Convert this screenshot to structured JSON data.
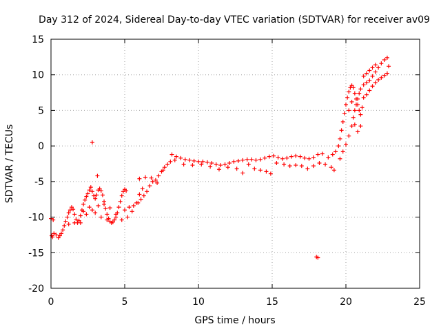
{
  "chart_data": {
    "type": "scatter",
    "title": "Day 312 of 2024, Sidereal Day-to-day VTEC variation (SDTVAR) for receiver av09",
    "xlabel": "GPS time / hours",
    "ylabel": "SDTVAR / TECUs",
    "xlim": [
      0,
      25
    ],
    "ylim": [
      -20,
      15
    ],
    "xticks": [
      0,
      5,
      10,
      15,
      20,
      25
    ],
    "yticks": [
      -20,
      -15,
      -10,
      -5,
      0,
      5,
      10,
      15
    ],
    "xtick_labels": [
      "0",
      "5",
      "10",
      "15",
      "20",
      "25"
    ],
    "ytick_labels": [
      "-20",
      "-15",
      "-10",
      "-5",
      "0",
      "5",
      "10",
      "15"
    ],
    "grid": true,
    "marker": "+",
    "color": "#ff0000",
    "series": [
      {
        "name": "SDTVAR",
        "points": [
          [
            0.0,
            -10.2
          ],
          [
            0.05,
            -12.6
          ],
          [
            0.1,
            -12.8
          ],
          [
            0.15,
            -10.4
          ],
          [
            0.2,
            -12.3
          ],
          [
            0.35,
            -12.5
          ],
          [
            0.5,
            -12.9
          ],
          [
            0.6,
            -12.6
          ],
          [
            0.7,
            -12.3
          ],
          [
            0.8,
            -11.8
          ],
          [
            0.9,
            -11.2
          ],
          [
            1.0,
            -10.6
          ],
          [
            1.1,
            -10.0
          ],
          [
            1.2,
            -9.4
          ],
          [
            1.3,
            -9.0
          ],
          [
            1.4,
            -8.6
          ],
          [
            1.5,
            -8.9
          ],
          [
            1.6,
            -9.6
          ],
          [
            1.7,
            -10.3
          ],
          [
            1.8,
            -10.8
          ],
          [
            1.9,
            -10.5
          ],
          [
            2.0,
            -9.8
          ],
          [
            2.1,
            -9.0
          ],
          [
            2.2,
            -8.2
          ],
          [
            2.3,
            -7.6
          ],
          [
            2.4,
            -7.1
          ],
          [
            2.5,
            -6.7
          ],
          [
            2.6,
            -6.2
          ],
          [
            2.7,
            -5.8
          ],
          [
            2.8,
            -6.4
          ],
          [
            2.9,
            -7.0
          ],
          [
            3.0,
            -7.4
          ],
          [
            3.1,
            -6.9
          ],
          [
            3.15,
            -4.2
          ],
          [
            3.2,
            -6.2
          ],
          [
            3.3,
            -6.0
          ],
          [
            3.4,
            -6.3
          ],
          [
            3.5,
            -6.9
          ],
          [
            3.6,
            -7.8
          ],
          [
            3.7,
            -8.8
          ],
          [
            3.8,
            -9.6
          ],
          [
            3.9,
            -10.2
          ],
          [
            4.0,
            -10.6
          ],
          [
            4.1,
            -10.8
          ],
          [
            4.2,
            -10.7
          ],
          [
            4.3,
            -10.4
          ],
          [
            4.4,
            -10.0
          ],
          [
            4.5,
            -9.4
          ],
          [
            4.6,
            -8.6
          ],
          [
            4.7,
            -7.8
          ],
          [
            4.8,
            -7.0
          ],
          [
            4.9,
            -6.4
          ],
          [
            5.0,
            -6.1
          ],
          [
            5.1,
            -6.3
          ],
          [
            1.2,
            -11.0
          ],
          [
            1.6,
            -10.8
          ],
          [
            2.0,
            -10.8
          ],
          [
            2.4,
            -9.6
          ],
          [
            2.8,
            -9.0
          ],
          [
            3.2,
            -8.4
          ],
          [
            3.6,
            -8.2
          ],
          [
            4.0,
            -8.7
          ],
          [
            4.4,
            -9.6
          ],
          [
            4.8,
            -10.4
          ],
          [
            5.2,
            -10.0
          ],
          [
            5.5,
            -9.2
          ],
          [
            5.8,
            -8.0
          ],
          [
            6.0,
            -6.8
          ],
          [
            6.2,
            -6.0
          ],
          [
            2.2,
            -9.2
          ],
          [
            2.6,
            -8.6
          ],
          [
            3.0,
            -9.4
          ],
          [
            3.4,
            -10.0
          ],
          [
            3.8,
            -10.4
          ],
          [
            5.0,
            -9.0
          ],
          [
            5.3,
            -8.6
          ],
          [
            5.6,
            -8.4
          ],
          [
            5.9,
            -8.0
          ],
          [
            6.1,
            -7.5
          ],
          [
            6.3,
            -7.0
          ],
          [
            6.5,
            -6.4
          ],
          [
            6.7,
            -5.6
          ],
          [
            6.9,
            -5.0
          ],
          [
            7.1,
            -4.8
          ],
          [
            7.3,
            -4.2
          ],
          [
            7.5,
            -3.6
          ],
          [
            7.7,
            -3.0
          ],
          [
            7.9,
            -2.6
          ],
          [
            8.1,
            -2.2
          ],
          [
            6.0,
            -4.6
          ],
          [
            6.4,
            -4.4
          ],
          [
            6.8,
            -4.5
          ],
          [
            7.2,
            -5.2
          ],
          [
            7.6,
            -3.4
          ],
          [
            8.2,
            -1.2
          ],
          [
            8.5,
            -1.5
          ],
          [
            8.8,
            -1.7
          ],
          [
            9.1,
            -1.9
          ],
          [
            9.4,
            -2.0
          ],
          [
            9.7,
            -2.1
          ],
          [
            10.0,
            -2.2
          ],
          [
            10.3,
            -2.2
          ],
          [
            10.6,
            -2.3
          ],
          [
            10.9,
            -2.4
          ],
          [
            11.2,
            -2.6
          ],
          [
            11.5,
            -2.7
          ],
          [
            11.8,
            -2.6
          ],
          [
            12.1,
            -2.4
          ],
          [
            12.4,
            -2.2
          ],
          [
            12.7,
            -2.1
          ],
          [
            13.0,
            -2.0
          ],
          [
            13.3,
            -1.9
          ],
          [
            13.6,
            -1.9
          ],
          [
            13.9,
            -2.0
          ],
          [
            14.2,
            -1.9
          ],
          [
            14.5,
            -1.7
          ],
          [
            14.8,
            -1.5
          ],
          [
            15.1,
            -1.4
          ],
          [
            15.4,
            -1.6
          ],
          [
            15.7,
            -1.8
          ],
          [
            16.0,
            -1.7
          ],
          [
            16.3,
            -1.5
          ],
          [
            16.6,
            -1.4
          ],
          [
            16.9,
            -1.5
          ],
          [
            17.2,
            -1.7
          ],
          [
            17.5,
            -1.8
          ],
          [
            17.8,
            -1.6
          ],
          [
            18.1,
            -1.2
          ],
          [
            18.4,
            -1.1
          ],
          [
            8.4,
            -2.0
          ],
          [
            9.0,
            -2.6
          ],
          [
            9.6,
            -2.7
          ],
          [
            10.2,
            -2.6
          ],
          [
            10.8,
            -2.9
          ],
          [
            11.4,
            -3.3
          ],
          [
            12.0,
            -3.0
          ],
          [
            12.6,
            -3.2
          ],
          [
            13.0,
            -3.8
          ],
          [
            13.4,
            -2.6
          ],
          [
            13.8,
            -3.2
          ],
          [
            14.2,
            -3.4
          ],
          [
            14.6,
            -3.6
          ],
          [
            14.9,
            -3.9
          ],
          [
            15.3,
            -2.4
          ],
          [
            15.8,
            -2.6
          ],
          [
            16.2,
            -2.8
          ],
          [
            16.6,
            -2.7
          ],
          [
            17.0,
            -2.8
          ],
          [
            17.4,
            -3.2
          ],
          [
            17.8,
            -2.8
          ],
          [
            18.2,
            -2.4
          ],
          [
            18.6,
            -2.6
          ],
          [
            19.0,
            -3.0
          ],
          [
            19.2,
            -3.4
          ],
          [
            18.0,
            -15.6
          ],
          [
            18.1,
            -15.7
          ],
          [
            2.8,
            0.5
          ],
          [
            18.8,
            -1.6
          ],
          [
            19.1,
            -1.2
          ],
          [
            19.3,
            -0.8
          ],
          [
            19.5,
            0.0
          ],
          [
            19.6,
            1.0
          ],
          [
            19.7,
            2.2
          ],
          [
            19.8,
            3.4
          ],
          [
            19.9,
            4.6
          ],
          [
            20.0,
            5.8
          ],
          [
            20.1,
            6.8
          ],
          [
            20.2,
            7.6
          ],
          [
            20.3,
            8.2
          ],
          [
            20.4,
            8.5
          ],
          [
            20.5,
            8.2
          ],
          [
            20.6,
            7.4
          ],
          [
            20.7,
            6.6
          ],
          [
            20.8,
            5.8
          ],
          [
            20.9,
            5.0
          ],
          [
            21.0,
            4.4
          ],
          [
            21.1,
            5.4
          ],
          [
            19.6,
            -1.8
          ],
          [
            19.8,
            -0.8
          ],
          [
            20.0,
            0.2
          ],
          [
            20.2,
            1.4
          ],
          [
            20.4,
            2.8
          ],
          [
            20.5,
            4.0
          ],
          [
            20.6,
            5.0
          ],
          [
            20.7,
            5.8
          ],
          [
            20.8,
            6.6
          ],
          [
            20.9,
            7.4
          ],
          [
            21.0,
            8.0
          ],
          [
            21.2,
            8.6
          ],
          [
            21.4,
            8.9
          ],
          [
            21.6,
            9.2
          ],
          [
            21.8,
            9.8
          ],
          [
            22.0,
            10.4
          ],
          [
            22.2,
            11.0
          ],
          [
            22.4,
            11.6
          ],
          [
            22.6,
            12.1
          ],
          [
            22.8,
            12.4
          ],
          [
            21.2,
            6.8
          ],
          [
            21.4,
            7.2
          ],
          [
            21.6,
            7.8
          ],
          [
            21.8,
            8.4
          ],
          [
            22.0,
            8.9
          ],
          [
            22.2,
            9.3
          ],
          [
            22.4,
            9.6
          ],
          [
            22.6,
            9.9
          ],
          [
            22.8,
            10.2
          ],
          [
            22.9,
            11.2
          ],
          [
            20.2,
            5.0
          ],
          [
            20.4,
            6.2
          ],
          [
            20.6,
            3.0
          ],
          [
            20.8,
            2.0
          ],
          [
            21.0,
            2.8
          ],
          [
            21.2,
            9.8
          ],
          [
            21.4,
            10.2
          ],
          [
            21.6,
            10.6
          ],
          [
            21.8,
            11.0
          ],
          [
            22.0,
            11.4
          ]
        ]
      }
    ]
  }
}
